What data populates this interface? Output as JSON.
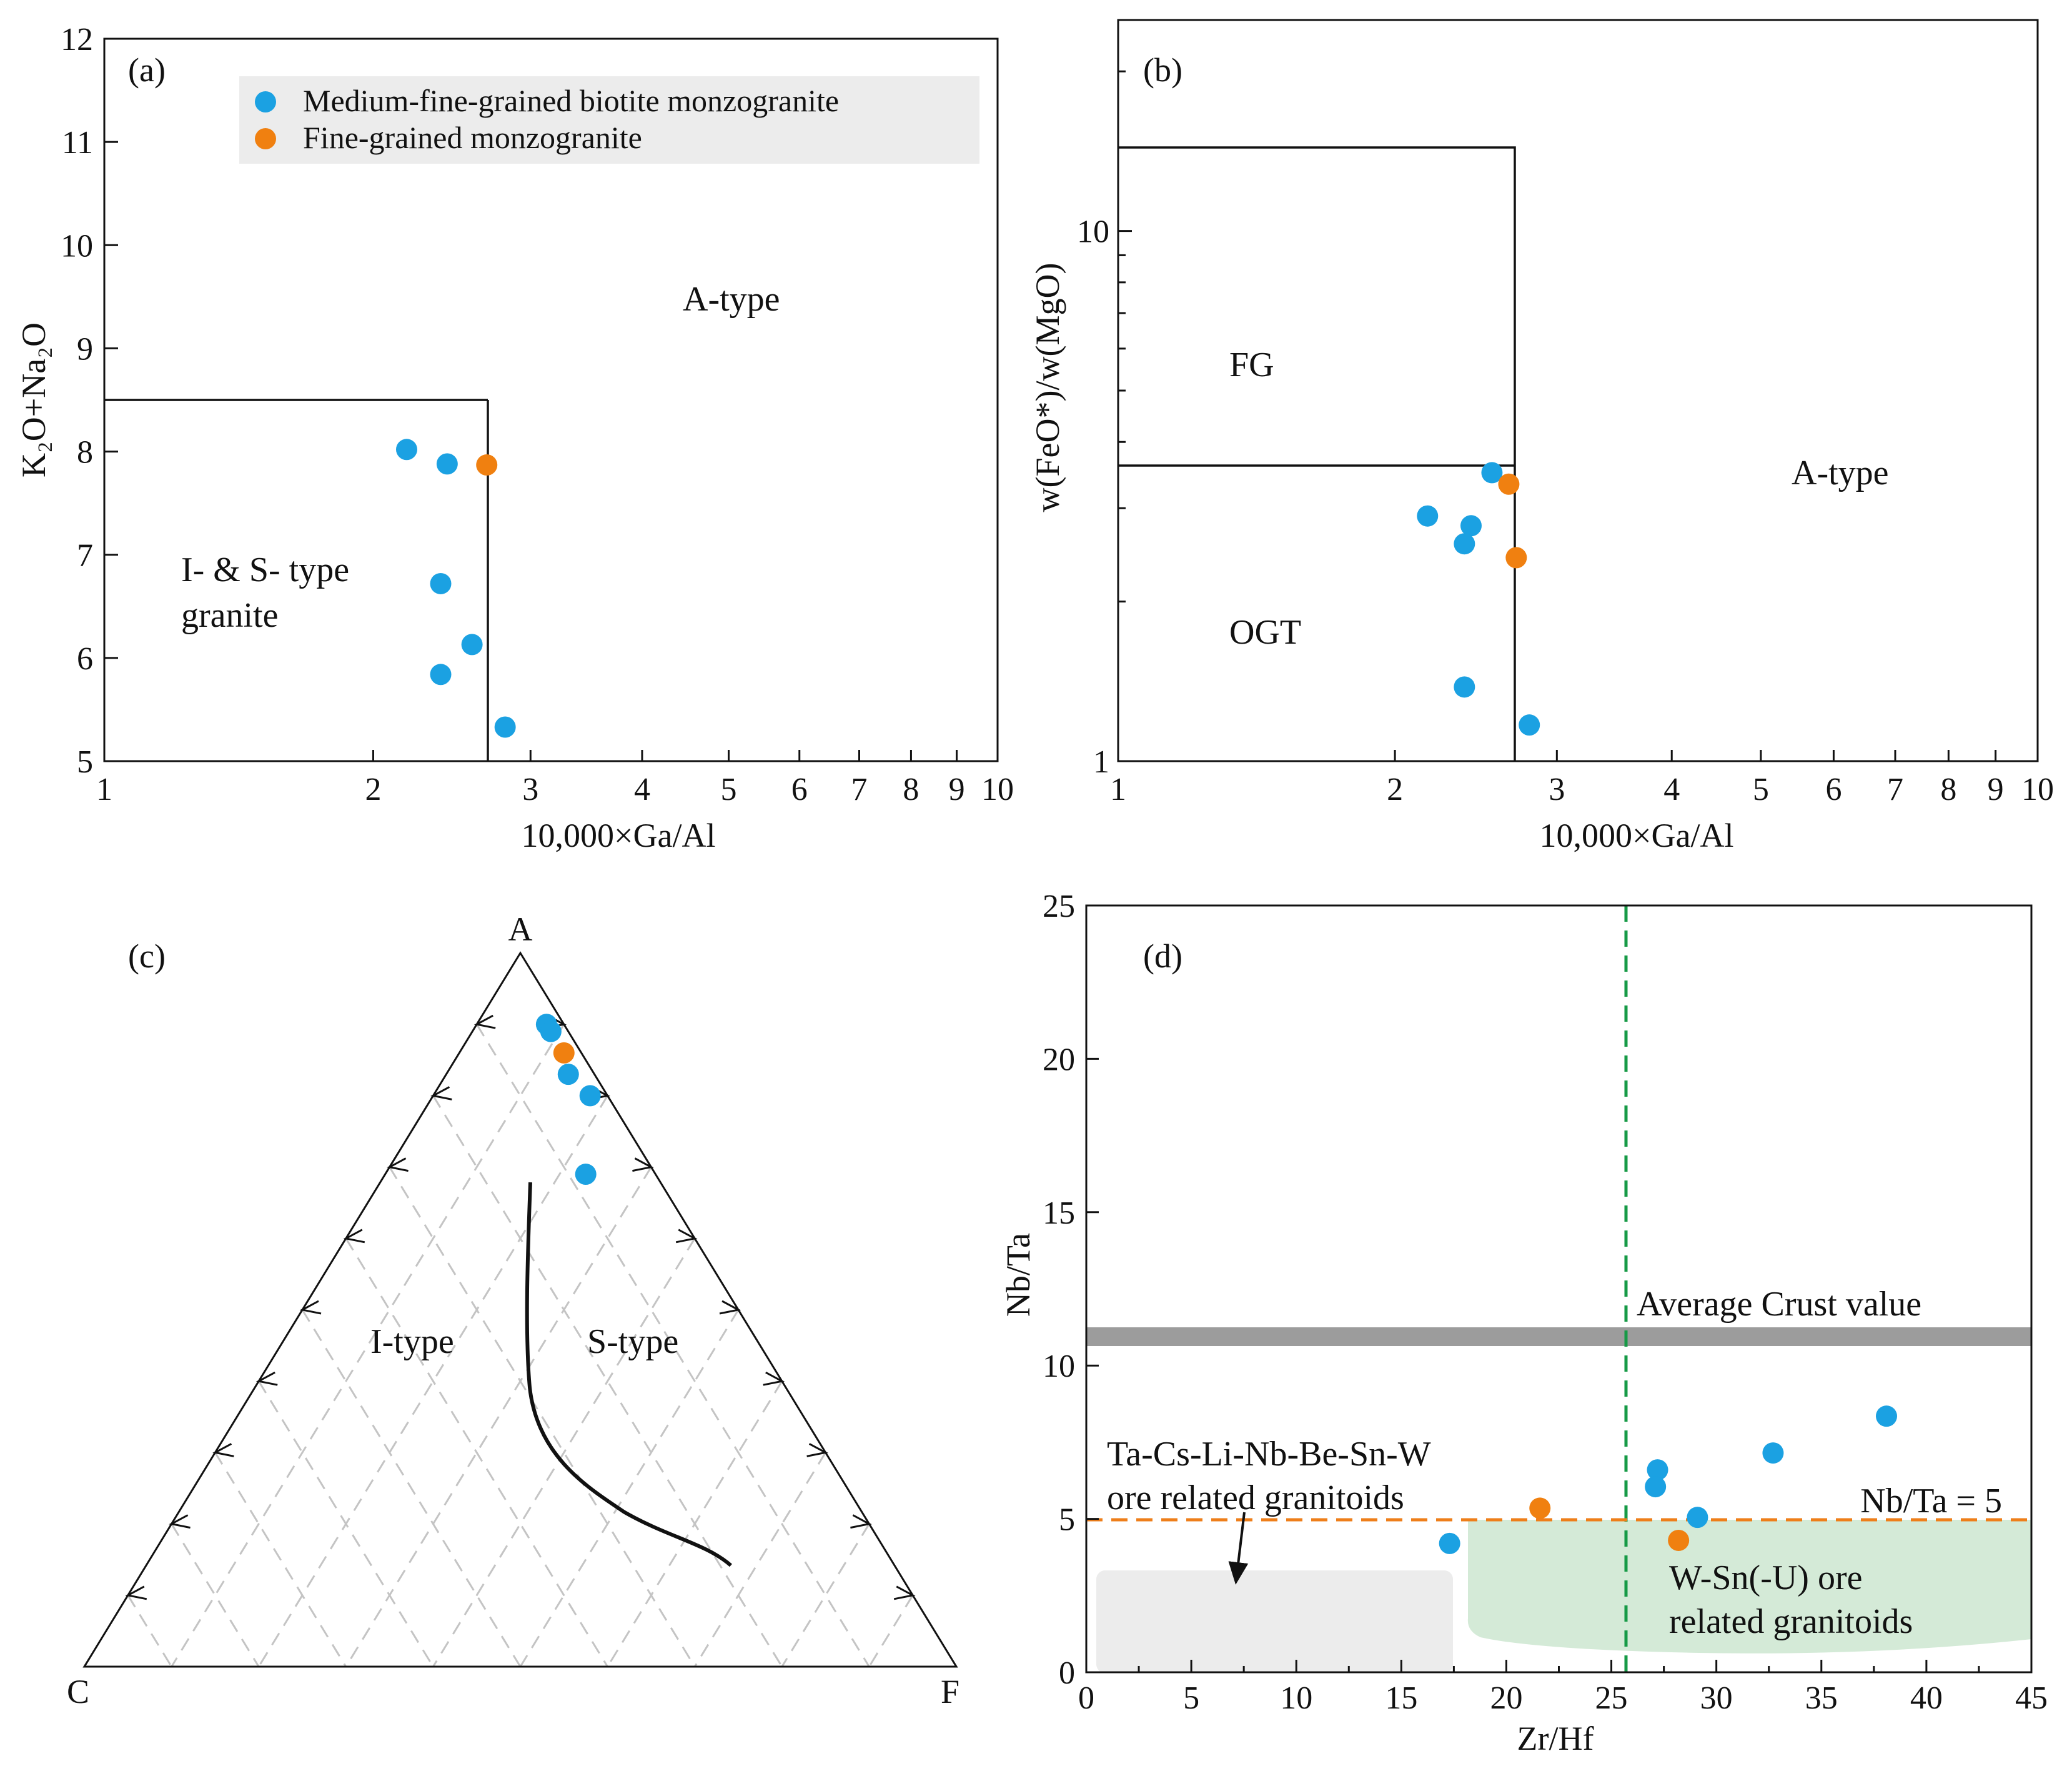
{
  "colors": {
    "medium_fine": "#1ba1e2",
    "fine": "#f08010",
    "avg_crust_band": "#9c9c9c",
    "green_dash": "#169a46",
    "orange_dash": "#ee7e1a",
    "wsn_field": "#d4ead7",
    "tacs_field": "#ececec",
    "legend_bg": "#ececec"
  },
  "chart_data": [
    {
      "id": "a",
      "panel_label": "(a)",
      "type": "scatter",
      "x_scale": "log",
      "xlim": [
        1,
        10
      ],
      "ylim": [
        5,
        12
      ],
      "xlabel": "10,000×Ga/Al",
      "ylabel": "K₂O+Na₂O",
      "x_ticks": [
        "1",
        "2",
        "3",
        "4",
        "5",
        "6",
        "7",
        "8",
        "9",
        "10"
      ],
      "y_ticks": [
        "5",
        "6",
        "7",
        "8",
        "9",
        "10",
        "11",
        "12"
      ],
      "legend": [
        {
          "name": "Medium-fine-grained biotite monzogranite",
          "color": "#1ba1e2"
        },
        {
          "name": "Fine-grained monzogranite",
          "color": "#f08010"
        }
      ],
      "regions": [
        {
          "name": "I- & S- type granite",
          "lines": [
            "I- & S- type",
            "granite"
          ],
          "boundary": "x ≤ 2.6, y ≤ 8.5"
        },
        {
          "name": "A-type",
          "lines": [
            "A-type"
          ]
        }
      ],
      "series": [
        {
          "name": "Medium-fine-grained biotite monzogranite",
          "points": [
            [
              2.18,
              8.02
            ],
            [
              2.42,
              7.88
            ],
            [
              2.38,
              6.72
            ],
            [
              2.58,
              6.13
            ],
            [
              2.38,
              5.84
            ],
            [
              2.81,
              5.33
            ]
          ]
        },
        {
          "name": "Fine-grained monzogranite",
          "points": [
            [
              2.68,
              7.87
            ]
          ]
        }
      ]
    },
    {
      "id": "b",
      "panel_label": "(b)",
      "type": "scatter",
      "x_scale": "log",
      "y_scale": "log",
      "xlim": [
        1,
        10
      ],
      "ylim": [
        1,
        25
      ],
      "xlabel": "10,000×Ga/Al",
      "ylabel": "w(FeO*)/w(MgO)",
      "x_ticks": [
        "1",
        "2",
        "3",
        "4",
        "5",
        "6",
        "7",
        "8",
        "9",
        "10"
      ],
      "y_ticks": [
        "1",
        "10"
      ],
      "regions": [
        {
          "name": "FG",
          "lines": [
            "FG"
          ]
        },
        {
          "name": "OGT",
          "lines": [
            "OGT"
          ]
        },
        {
          "name": "A-type",
          "lines": [
            "A-type"
          ]
        }
      ],
      "series": [
        {
          "name": "Medium-fine-grained biotite monzogranite",
          "points": [
            [
              2.55,
              3.5
            ],
            [
              2.17,
              2.9
            ],
            [
              2.42,
              2.78
            ],
            [
              2.38,
              2.57
            ],
            [
              2.38,
              1.38
            ],
            [
              2.8,
              1.17
            ]
          ]
        },
        {
          "name": "Fine-grained monzogranite",
          "points": [
            [
              2.66,
              3.33
            ],
            [
              2.71,
              2.42
            ]
          ]
        }
      ]
    },
    {
      "id": "c",
      "panel_label": "(c)",
      "type": "ternary",
      "vertices": {
        "top": "A",
        "left": "C",
        "right": "F"
      },
      "regions": [
        {
          "name": "I-type",
          "lines": [
            "I-type"
          ]
        },
        {
          "name": "S-type",
          "lines": [
            "S-type"
          ]
        }
      ],
      "series": [
        {
          "name": "Medium-fine-grained biotite monzogranite",
          "points": [
            [
              0.9,
              0.02,
              0.08
            ],
            [
              0.89,
              0.02,
              0.09
            ],
            [
              0.83,
              0.03,
              0.14
            ],
            [
              0.8,
              0.02,
              0.18
            ],
            [
              0.69,
              0.08,
              0.23
            ]
          ]
        },
        {
          "name": "Fine-grained monzogranite",
          "points": [
            [
              0.86,
              0.02,
              0.12
            ]
          ]
        }
      ]
    },
    {
      "id": "d",
      "panel_label": "(d)",
      "type": "scatter",
      "xlim": [
        0,
        45
      ],
      "ylim": [
        0,
        25
      ],
      "xlabel": "Zr/Hf",
      "ylabel": "Nb/Ta",
      "x_ticks": [
        "0",
        "5",
        "10",
        "15",
        "20",
        "25",
        "30",
        "35",
        "40",
        "45"
      ],
      "y_ticks": [
        "0",
        "5",
        "10",
        "15",
        "20",
        "25"
      ],
      "reference_lines": [
        {
          "name": "Average Crust value",
          "axis": "y",
          "value": 11.0
        },
        {
          "name": "Nb/Ta = 5",
          "axis": "y",
          "value": 5
        },
        {
          "name": "Zr/Hf",
          "axis": "x",
          "value": 25.5
        }
      ],
      "fields": [
        {
          "name": "Ta-Cs-Li-Nb-Be-Sn-W ore related granitoids",
          "lines": [
            "Ta-Cs-Li-Nb-Be-Sn-W",
            "ore related granitoids"
          ],
          "x_range": [
            0,
            17.5
          ],
          "y_range": [
            0,
            3.5
          ]
        },
        {
          "name": "W-Sn(-U) ore related granitoids",
          "lines": [
            "W-Sn(-U) ore",
            "related granitoids"
          ],
          "x_range": [
            18,
            45
          ],
          "y_range": [
            1,
            5
          ]
        }
      ],
      "series": [
        {
          "name": "Medium-fine-grained biotite monzogranite",
          "points": [
            [
              17.3,
              4.2
            ],
            [
              27.2,
              6.6
            ],
            [
              27.1,
              6.05
            ],
            [
              29.1,
              5.05
            ],
            [
              32.7,
              7.15
            ],
            [
              38.1,
              8.35
            ]
          ]
        },
        {
          "name": "Fine-grained monzogranite",
          "points": [
            [
              21.6,
              5.35
            ],
            [
              28.2,
              4.3
            ]
          ]
        }
      ]
    }
  ]
}
